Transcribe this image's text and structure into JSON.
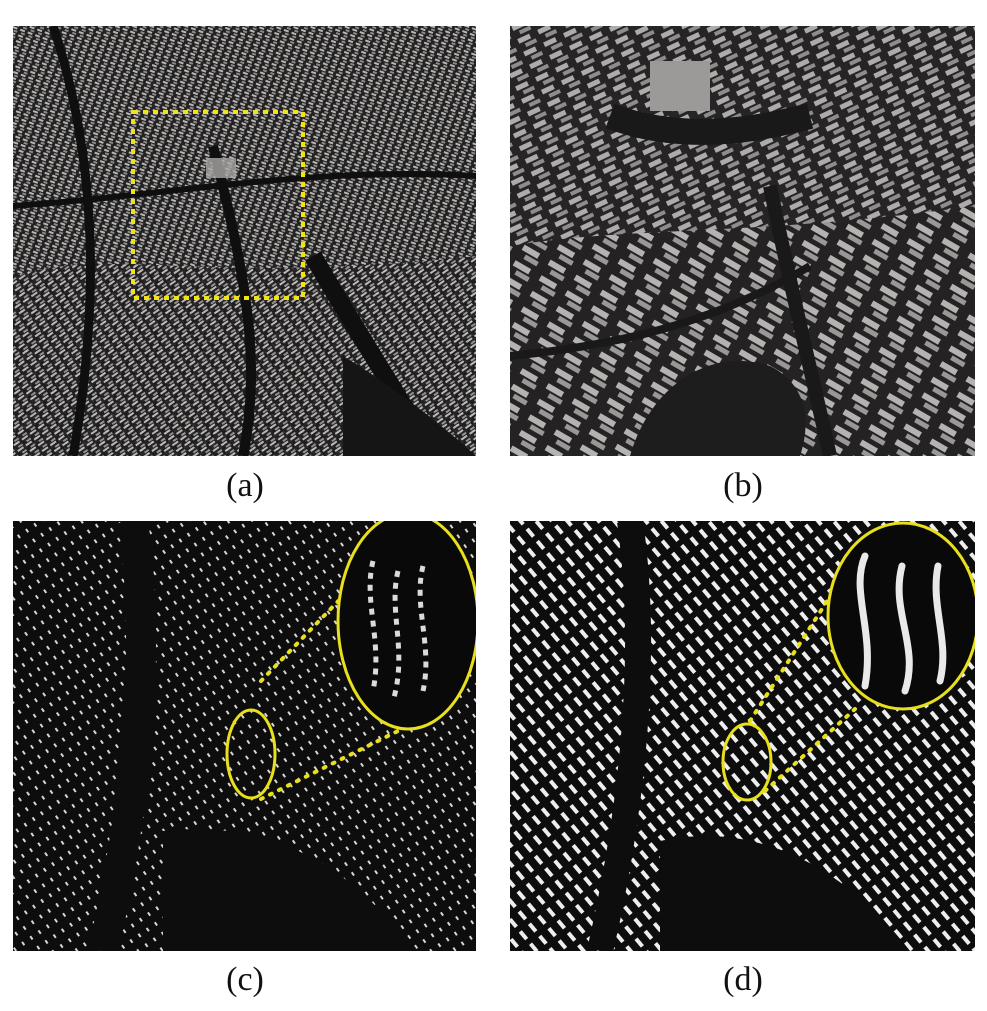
{
  "figure": {
    "panels": [
      {
        "id": "a",
        "caption": "(a)"
      },
      {
        "id": "b",
        "caption": "(b)"
      },
      {
        "id": "c",
        "caption": "(c)"
      },
      {
        "id": "d",
        "caption": "(d)"
      }
    ]
  },
  "colors": {
    "background_dark": "#1c1b1b",
    "building_light": "#c9c6c4",
    "building_gray": "#a9a7a6",
    "highlight_yellow": "#f2e21a",
    "footprint_white": "#eeeeee"
  }
}
